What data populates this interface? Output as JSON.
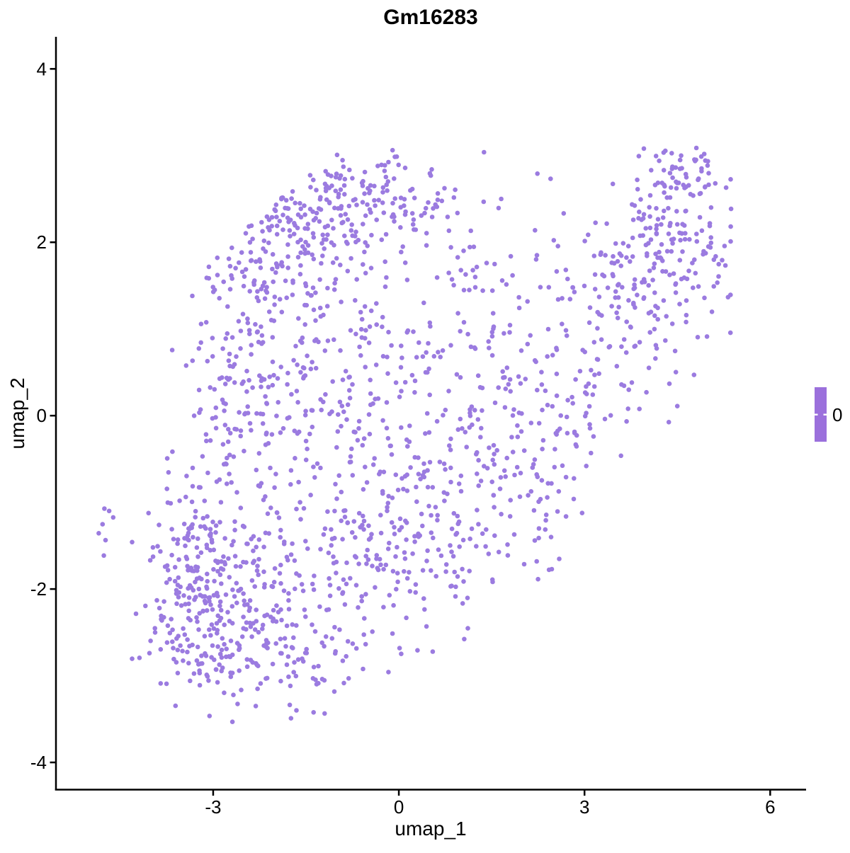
{
  "title": "Gm16283",
  "chart_data": {
    "type": "scatter",
    "subtype": "umap-feature-plot",
    "title": "Gm16283",
    "xlabel": "umap_1",
    "ylabel": "umap_2",
    "xlim": [
      -5.54,
      6.58
    ],
    "ylim": [
      -4.31,
      4.37
    ],
    "xticks": [
      -3,
      0,
      3,
      6
    ],
    "yticks": [
      4,
      2,
      0,
      -2,
      -4
    ],
    "grid": false,
    "background": "#ffffff",
    "axis_color": "#000000",
    "point_color": "#9b7be0",
    "point_radius_px": 3.3,
    "n_points_approx": 1892,
    "legend": {
      "label": "0",
      "bar_color": "#9b70dc",
      "tick_color": "#ffffff",
      "position": "right"
    },
    "point_generation": {
      "seed": 42,
      "bounds": {
        "x_min": -4.95,
        "x_max": 5.38,
        "y_min": -3.55,
        "y_max": 3.12,
        "cut_bottom_right": {
          "slope": 0.85,
          "intercept": -3.9
        },
        "cut_top_left": {
          "slope": 0.62,
          "intercept": 3.7
        }
      },
      "clusters": [
        {
          "name": "far-left-clump",
          "n": 7,
          "cx": -4.72,
          "cy": -1.22,
          "sx": 0.07,
          "sy": 0.12
        },
        {
          "name": "bottom-left-dense",
          "n": 245,
          "cx": -2.95,
          "cy": -2.25,
          "sx": 0.6,
          "sy": 0.5
        },
        {
          "name": "bottom-left-edge",
          "n": 95,
          "cx": -3.35,
          "cy": -1.6,
          "sx": 0.45,
          "sy": 0.5
        },
        {
          "name": "left-band",
          "n": 195,
          "cx": -2.55,
          "cy": 0.5,
          "sx": 0.55,
          "sy": 1.0
        },
        {
          "name": "left-top",
          "n": 120,
          "cx": -1.9,
          "cy": 2.0,
          "sx": 0.6,
          "sy": 0.5
        },
        {
          "name": "top-band",
          "n": 160,
          "cx": -0.6,
          "cy": 2.5,
          "sx": 0.75,
          "sy": 0.35
        },
        {
          "name": "mid-core",
          "n": 190,
          "cx": -0.7,
          "cy": 0.3,
          "sx": 0.85,
          "sy": 0.95
        },
        {
          "name": "mid-low",
          "n": 170,
          "cx": -0.6,
          "cy": -1.7,
          "sx": 0.8,
          "sy": 0.6
        },
        {
          "name": "bottom-mid",
          "n": 70,
          "cx": -1.6,
          "cy": -2.8,
          "sx": 0.55,
          "sy": 0.35
        },
        {
          "name": "mid-right",
          "n": 95,
          "cx": 0.9,
          "cy": 0.2,
          "sx": 0.7,
          "sy": 0.9
        },
        {
          "name": "bridge-low",
          "n": 95,
          "cx": 1.1,
          "cy": -1.2,
          "sx": 0.75,
          "sy": 0.6
        },
        {
          "name": "bridge-right",
          "n": 65,
          "cx": 2.3,
          "cy": -0.3,
          "sx": 0.55,
          "sy": 0.55
        },
        {
          "name": "sparse-mid-top",
          "n": 50,
          "cx": 1.6,
          "cy": 1.6,
          "sx": 0.7,
          "sy": 0.6
        },
        {
          "name": "arm-low",
          "n": 85,
          "cx": 3.2,
          "cy": 0.8,
          "sx": 0.55,
          "sy": 0.65
        },
        {
          "name": "arm-mid",
          "n": 95,
          "cx": 3.9,
          "cy": 1.6,
          "sx": 0.5,
          "sy": 0.5
        },
        {
          "name": "arm-tip",
          "n": 120,
          "cx": 4.6,
          "cy": 2.1,
          "sx": 0.45,
          "sy": 0.5
        },
        {
          "name": "arm-top",
          "n": 35,
          "cx": 4.55,
          "cy": 2.85,
          "sx": 0.3,
          "sy": 0.17
        }
      ]
    }
  }
}
